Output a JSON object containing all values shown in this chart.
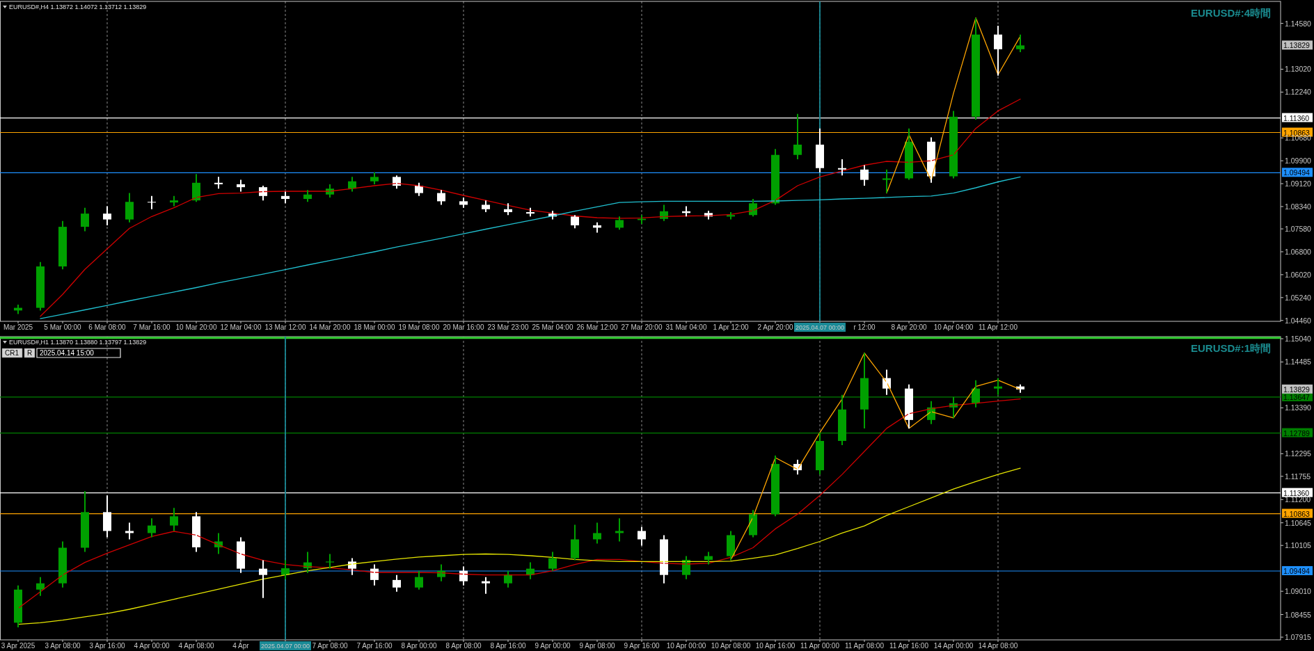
{
  "chart_data": [
    {
      "type": "candlestick",
      "title": "EURUSD#:4時間",
      "subtitle": "EURUSD#,H4  1.13872 1.14072 1.13712 1.13829",
      "categories": [
        "Mar 2025",
        null,
        "5 Mar 00:00",
        null,
        "6 Mar 08:00",
        null,
        "7 Mar 16:00",
        null,
        "10 Mar 20:00",
        null,
        "12 Mar 04:00",
        null,
        "13 Mar 12:00",
        null,
        "14 Mar 20:00",
        null,
        "18 Mar 00:00",
        null,
        "19 Mar 08:00",
        null,
        "20 Mar 16:00",
        null,
        "23 Mar 23:00",
        null,
        "25 Mar 04:00",
        null,
        "26 Mar 12:00",
        null,
        "27 Mar 20:00",
        null,
        "31 Mar 04:00",
        null,
        "1 Apr 12:00",
        null,
        "2 Apr 20:00",
        null,
        "2025.04.07 00:00",
        null,
        "r 12:00",
        null,
        "8 Apr 20:00",
        null,
        "10 Apr 04:00",
        null,
        "11 Apr 12:00",
        null
      ],
      "ohlc": [
        [
          1.048,
          1.05,
          1.0468,
          1.0489
        ],
        [
          1.0489,
          1.0645,
          1.048,
          1.063
        ],
        [
          1.063,
          1.0785,
          1.062,
          1.0765
        ],
        [
          1.0765,
          1.083,
          1.075,
          1.081
        ],
        [
          1.081,
          1.0835,
          1.077,
          1.079
        ],
        [
          1.079,
          1.088,
          1.078,
          1.085
        ],
        [
          1.085,
          1.087,
          1.0825,
          1.0848
        ],
        [
          1.0848,
          1.087,
          1.0835,
          1.0855
        ],
        [
          1.0855,
          1.0945,
          1.085,
          1.0915
        ],
        [
          1.0915,
          1.0935,
          1.0895,
          1.091
        ],
        [
          1.091,
          1.0925,
          1.0885,
          1.09
        ],
        [
          1.09,
          1.0905,
          1.0855,
          1.087
        ],
        [
          1.087,
          1.0885,
          1.0845,
          1.086
        ],
        [
          1.086,
          1.089,
          1.085,
          1.0875
        ],
        [
          1.0875,
          1.091,
          1.0865,
          1.0895
        ],
        [
          1.0895,
          1.0935,
          1.0885,
          1.092
        ],
        [
          1.092,
          1.095,
          1.091,
          1.0935
        ],
        [
          1.0935,
          1.094,
          1.0895,
          1.0905
        ],
        [
          1.0905,
          1.0915,
          1.087,
          1.088
        ],
        [
          1.088,
          1.089,
          1.084,
          1.0852
        ],
        [
          1.0852,
          1.0865,
          1.083,
          1.084
        ],
        [
          1.084,
          1.0855,
          1.0815,
          1.0825
        ],
        [
          1.0825,
          1.0845,
          1.0805,
          1.0815
        ],
        [
          1.0815,
          1.083,
          1.08,
          1.081
        ],
        [
          1.081,
          1.082,
          1.079,
          1.08
        ],
        [
          1.08,
          1.0805,
          1.076,
          1.077
        ],
        [
          1.077,
          1.078,
          1.0745,
          1.0762
        ],
        [
          1.0762,
          1.08,
          1.0755,
          1.0788
        ],
        [
          1.0788,
          1.0805,
          1.0775,
          1.0792
        ],
        [
          1.0792,
          1.084,
          1.0785,
          1.0818
        ],
        [
          1.0818,
          1.0835,
          1.08,
          1.0812
        ],
        [
          1.0812,
          1.082,
          1.079,
          1.08
        ],
        [
          1.08,
          1.0815,
          1.079,
          1.0805
        ],
        [
          1.0805,
          1.086,
          1.08,
          1.0845
        ],
        [
          1.0845,
          1.103,
          1.084,
          1.101
        ],
        [
          1.101,
          1.115,
          1.0995,
          1.1045
        ],
        [
          1.1045,
          1.11,
          1.095,
          1.0965
        ],
        [
          1.0965,
          1.0995,
          1.094,
          1.096
        ],
        [
          1.096,
          1.0975,
          1.0905,
          1.0925
        ],
        [
          1.0925,
          1.096,
          1.088,
          1.093
        ],
        [
          1.093,
          1.11,
          1.0925,
          1.1055
        ],
        [
          1.1055,
          1.107,
          1.0915,
          1.0937
        ],
        [
          1.0937,
          1.116,
          1.093,
          1.114
        ],
        [
          1.114,
          1.1477,
          1.113,
          1.142
        ],
        [
          1.142,
          1.145,
          1.128,
          1.137
        ],
        [
          1.137,
          1.142,
          1.136,
          1.1383
        ]
      ],
      "colors": [
        "#00a000",
        "#00a000",
        "#00a000",
        "#00a000",
        "#ffffff",
        "#00a000",
        "#ffffff",
        "#00a000",
        "#00a000",
        "#ffffff",
        "#ffffff",
        "#ffffff",
        "#ffffff",
        "#00a000",
        "#00a000",
        "#00a000",
        "#00a000",
        "#ffffff",
        "#ffffff",
        "#ffffff",
        "#ffffff",
        "#ffffff",
        "#ffffff",
        "#ffffff",
        "#ffffff",
        "#ffffff",
        "#ffffff",
        "#00a000",
        "#00a000",
        "#00a000",
        "#ffffff",
        "#ffffff",
        "#00a000",
        "#00a000",
        "#00a000",
        "#00a000",
        "#ffffff",
        "#ffffff",
        "#ffffff",
        "#00a000",
        "#00a000",
        "#ffffff",
        "#00a000",
        "#00a000",
        "#ffffff",
        "#00a000"
      ],
      "series": [
        {
          "type": "line",
          "color": "#d00000",
          "values": [
            null,
            1.046,
            1.0535,
            1.062,
            1.069,
            1.076,
            1.08,
            1.083,
            1.0865,
            1.0878,
            1.088,
            1.0885,
            1.0886,
            1.0886,
            1.0886,
            1.0895,
            1.0905,
            1.0913,
            1.0905,
            1.089,
            1.0872,
            1.0855,
            1.0838,
            1.0822,
            1.0812,
            1.0802,
            1.0796,
            1.0794,
            1.0795,
            1.08,
            1.0802,
            1.0803,
            1.0807,
            1.082,
            1.0855,
            1.0905,
            1.0935,
            1.0955,
            1.0975,
            1.0988,
            1.0985,
            1.099,
            1.101,
            1.11,
            1.116,
            1.12
          ]
        },
        {
          "type": "line",
          "color": "#20c0d0",
          "values": [
            null,
            1.0452,
            1.0467,
            1.0482,
            1.0497,
            1.0513,
            1.0528,
            1.0543,
            1.0558,
            1.0574,
            1.0589,
            1.0604,
            1.0619,
            1.0635,
            1.065,
            1.0665,
            1.068,
            1.0696,
            1.0711,
            1.0726,
            1.0741,
            1.0757,
            1.0772,
            1.0787,
            1.0802,
            1.0818,
            1.0833,
            1.0848,
            1.085,
            1.0852,
            1.0852,
            1.0852,
            1.0852,
            1.0852,
            1.0853,
            1.0855,
            1.0857,
            1.086,
            1.0862,
            1.0865,
            1.0868,
            1.087,
            1.088,
            1.0898,
            1.0918,
            1.0935
          ]
        },
        {
          "type": "line",
          "color": "#ffa500",
          "values": [
            null,
            null,
            null,
            null,
            null,
            null,
            null,
            null,
            null,
            null,
            null,
            null,
            null,
            null,
            null,
            null,
            null,
            null,
            null,
            null,
            null,
            null,
            null,
            null,
            null,
            null,
            null,
            null,
            null,
            null,
            null,
            null,
            null,
            null,
            null,
            null,
            null,
            null,
            null,
            1.088,
            1.1079,
            1.0923,
            1.122,
            1.1477,
            1.1283,
            1.1414
          ]
        }
      ],
      "ylim": [
        1.0443,
        1.1533
      ],
      "yticks": [
        {
          "value": 1.0446,
          "label": "1.04460"
        },
        {
          "value": 1.0524,
          "label": "1.05240"
        },
        {
          "value": 1.0602,
          "label": "1.06020"
        },
        {
          "value": 1.068,
          "label": "1.06800"
        },
        {
          "value": 1.0758,
          "label": "1.07580"
        },
        {
          "value": 1.0834,
          "label": "1.08340"
        },
        {
          "value": 1.0912,
          "label": "1.09120"
        },
        {
          "value": 1.099,
          "label": "1.09900"
        },
        {
          "value": 1.1068,
          "label": "1.10680"
        },
        {
          "value": 1.1224,
          "label": "1.12240"
        },
        {
          "value": 1.1302,
          "label": "1.13020"
        },
        {
          "value": 1.1458,
          "label": "1.14580"
        }
      ],
      "ref_lines": [
        {
          "axis": "y",
          "value": 1.1136,
          "label": "1.11360",
          "color": "#ffffff"
        },
        {
          "axis": "y",
          "value": 1.10863,
          "label": "1.10863",
          "color": "#ffa500"
        },
        {
          "axis": "y",
          "value": 1.09494,
          "label": "1.09494",
          "color": "#1e90ff"
        },
        {
          "axis": "x",
          "value": "2025.04.07 00:00",
          "color": "#1a8a96"
        }
      ],
      "annotations": [
        "1.13829"
      ],
      "grid": "x"
    },
    {
      "type": "candlestick",
      "title": "EURUSD#:1時間",
      "subtitle": "EURUSD#,H1  1.13870 1.13880 1.13797 1.13829",
      "categories": [
        "3 Apr 2025",
        null,
        "3 Apr 08:00",
        null,
        "3 Apr 16:00",
        null,
        "4 Apr 00:00",
        null,
        "4 Apr 08:00",
        null,
        "4 Apr",
        null,
        "2025.04.07 00:00",
        null,
        "7 Apr 08:00",
        null,
        "7 Apr 16:00",
        null,
        "8 Apr 00:00",
        null,
        "8 Apr 08:00",
        null,
        "8 Apr 16:00",
        null,
        "9 Apr 00:00",
        null,
        "9 Apr 08:00",
        null,
        "9 Apr 16:00",
        null,
        "10 Apr 00:00",
        null,
        "10 Apr 08:00",
        null,
        "10 Apr 16:00",
        null,
        "11 Apr 00:00",
        null,
        "11 Apr 08:00",
        null,
        "11 Apr 16:00",
        null,
        "14 Apr 00:00",
        null,
        "14 Apr 08:00",
        null
      ],
      "ohlc": [
        [
          1.0826,
          1.0915,
          1.0815,
          1.0905
        ],
        [
          1.0905,
          1.0935,
          1.089,
          1.092
        ],
        [
          1.092,
          1.102,
          1.091,
          1.1005
        ],
        [
          1.1005,
          1.114,
          1.0995,
          1.109
        ],
        [
          1.109,
          1.113,
          1.103,
          1.1045
        ],
        [
          1.1045,
          1.1065,
          1.1025,
          1.104
        ],
        [
          1.104,
          1.1075,
          1.103,
          1.1058
        ],
        [
          1.1058,
          1.11,
          1.1045,
          1.108
        ],
        [
          1.108,
          1.109,
          1.0995,
          1.1006
        ],
        [
          1.1006,
          1.104,
          1.099,
          1.102
        ],
        [
          1.102,
          1.103,
          1.0945,
          1.0955
        ],
        [
          1.0955,
          1.0975,
          1.0885,
          1.094
        ],
        [
          1.094,
          1.0975,
          1.093,
          1.0956
        ],
        [
          1.0956,
          1.0995,
          1.0945,
          1.097
        ],
        [
          1.097,
          1.099,
          1.0955,
          1.0972
        ],
        [
          1.0972,
          1.098,
          1.094,
          1.0955
        ],
        [
          1.0955,
          1.0965,
          1.0915,
          1.0928
        ],
        [
          1.0928,
          1.094,
          1.09,
          1.091
        ],
        [
          1.091,
          1.095,
          1.0905,
          1.0935
        ],
        [
          1.0935,
          1.0965,
          1.0925,
          1.095
        ],
        [
          1.095,
          1.096,
          1.0915,
          1.0925
        ],
        [
          1.0925,
          1.0935,
          1.0895,
          1.092
        ],
        [
          1.092,
          1.095,
          1.091,
          1.094
        ],
        [
          1.094,
          1.097,
          1.093,
          1.0955
        ],
        [
          1.0955,
          1.0995,
          1.095,
          1.098
        ],
        [
          1.098,
          1.106,
          1.0975,
          1.1025
        ],
        [
          1.1025,
          1.1065,
          1.1015,
          1.104
        ],
        [
          1.104,
          1.1075,
          1.102,
          1.1045
        ],
        [
          1.1045,
          1.1055,
          1.101,
          1.1025
        ],
        [
          1.1025,
          1.1035,
          1.092,
          1.094
        ],
        [
          1.094,
          1.0985,
          1.093,
          1.0976
        ],
        [
          1.0976,
          1.0995,
          1.0965,
          1.0985
        ],
        [
          1.0985,
          1.1045,
          1.0975,
          1.1035
        ],
        [
          1.1035,
          1.1095,
          1.103,
          1.1085
        ],
        [
          1.1085,
          1.1225,
          1.108,
          1.1205
        ],
        [
          1.1205,
          1.1215,
          1.118,
          1.119
        ],
        [
          1.119,
          1.128,
          1.118,
          1.126
        ],
        [
          1.126,
          1.137,
          1.125,
          1.1335
        ],
        [
          1.1335,
          1.147,
          1.129,
          1.141
        ],
        [
          1.141,
          1.143,
          1.137,
          1.1385
        ],
        [
          1.1385,
          1.1395,
          1.129,
          1.131
        ],
        [
          1.131,
          1.1355,
          1.13,
          1.134
        ],
        [
          1.134,
          1.1365,
          1.1315,
          1.135
        ],
        [
          1.135,
          1.1405,
          1.134,
          1.1385
        ],
        [
          1.1385,
          1.141,
          1.137,
          1.139
        ],
        [
          1.139,
          1.1395,
          1.1375,
          1.1383
        ]
      ],
      "colors": [
        "#00a000",
        "#00a000",
        "#00a000",
        "#00a000",
        "#ffffff",
        "#ffffff",
        "#00a000",
        "#00a000",
        "#ffffff",
        "#00a000",
        "#ffffff",
        "#ffffff",
        "#00a000",
        "#00a000",
        "#00a000",
        "#ffffff",
        "#ffffff",
        "#ffffff",
        "#00a000",
        "#00a000",
        "#ffffff",
        "#ffffff",
        "#00a000",
        "#00a000",
        "#00a000",
        "#00a000",
        "#00a000",
        "#00a000",
        "#ffffff",
        "#ffffff",
        "#00a000",
        "#00a000",
        "#00a000",
        "#00a000",
        "#00a000",
        "#ffffff",
        "#00a000",
        "#00a000",
        "#00a000",
        "#ffffff",
        "#ffffff",
        "#00a000",
        "#00a000",
        "#00a000",
        "#00a000",
        "#ffffff"
      ],
      "series": [
        {
          "type": "line",
          "color": "#d00000",
          "values": [
            1.086,
            1.09,
            1.094,
            1.097,
            1.0992,
            1.1012,
            1.1032,
            1.1044,
            1.1035,
            1.1012,
            1.099,
            1.0975,
            1.0965,
            1.096,
            1.0957,
            1.0952,
            1.0946,
            1.0946,
            1.0946,
            1.0945,
            1.0942,
            1.094,
            1.094,
            1.094,
            1.095,
            1.0965,
            1.0977,
            1.0977,
            1.0972,
            1.0968,
            1.0966,
            1.0968,
            1.0982,
            1.1005,
            1.105,
            1.1085,
            1.113,
            1.118,
            1.1235,
            1.129,
            1.1325,
            1.1337,
            1.1345,
            1.135,
            1.1355,
            1.136
          ]
        },
        {
          "type": "line",
          "color": "#e6e600",
          "values": [
            1.0822,
            1.0826,
            1.0832,
            1.084,
            1.0848,
            1.0858,
            1.087,
            1.0882,
            1.0894,
            1.0906,
            1.0918,
            1.093,
            1.094,
            1.095,
            1.0958,
            1.0966,
            1.0972,
            1.0978,
            1.0983,
            1.0986,
            1.0989,
            1.099,
            1.0989,
            1.0986,
            1.0982,
            1.0977,
            1.0974,
            1.0972,
            1.0972,
            1.0972,
            1.0972,
            1.0972,
            1.0973,
            1.098,
            1.0988,
            1.1003,
            1.102,
            1.104,
            1.1057,
            1.1082,
            1.1103,
            1.1124,
            1.1145,
            1.1163,
            1.118,
            1.1195
          ]
        },
        {
          "type": "line",
          "color": "#ffa500",
          "values": [
            null,
            null,
            null,
            null,
            null,
            null,
            null,
            null,
            null,
            null,
            null,
            null,
            null,
            null,
            null,
            null,
            null,
            null,
            null,
            null,
            null,
            null,
            null,
            null,
            null,
            null,
            null,
            null,
            null,
            null,
            null,
            null,
            1.0976,
            1.1078,
            1.122,
            1.1192,
            1.128,
            1.136,
            1.147,
            1.14,
            1.129,
            1.133,
            1.1315,
            1.139,
            1.1405,
            1.1383
          ]
        }
      ],
      "ylim": [
        1.0785,
        1.1509
      ],
      "yticks": [
        {
          "value": 1.07915,
          "label": "1.07915"
        },
        {
          "value": 1.08455,
          "label": "1.08455"
        },
        {
          "value": 1.0901,
          "label": "1.09010"
        },
        {
          "value": 1.10105,
          "label": "1.10105"
        },
        {
          "value": 1.10645,
          "label": "1.10645"
        },
        {
          "value": 1.112,
          "label": "1.11200"
        },
        {
          "value": 1.11755,
          "label": "1.11755"
        },
        {
          "value": 1.12295,
          "label": "1.12295"
        },
        {
          "value": 1.1339,
          "label": "1.13390"
        },
        {
          "value": 1.14485,
          "label": "1.14485"
        },
        {
          "value": 1.1504,
          "label": "1.15040"
        }
      ],
      "ref_lines": [
        {
          "axis": "y",
          "value": 1.1506,
          "color": "#32cd32"
        },
        {
          "axis": "y",
          "value": 1.13647,
          "label": "1.13647",
          "color": "#008000"
        },
        {
          "axis": "y",
          "value": 1.12789,
          "label": "1.12789",
          "color": "#008000"
        },
        {
          "axis": "y",
          "value": 1.1136,
          "label": "1.11360",
          "color": "#ffffff"
        },
        {
          "axis": "y",
          "value": 1.10863,
          "label": "1.10863",
          "color": "#ffa500"
        },
        {
          "axis": "y",
          "value": 1.09494,
          "label": "1.09494",
          "color": "#1e90ff"
        },
        {
          "axis": "x",
          "value": "2025.04.07 00:00",
          "color": "#1a8a96"
        }
      ],
      "annotations": [
        "CR1",
        "R",
        "2025.04.14 15:00",
        "1.13829"
      ],
      "grid": "x"
    }
  ]
}
